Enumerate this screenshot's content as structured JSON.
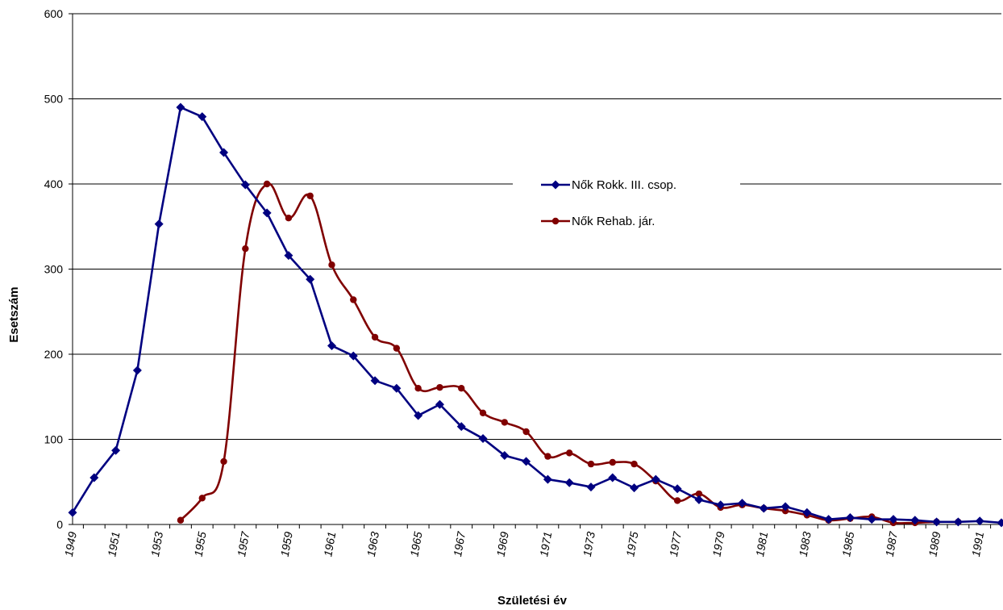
{
  "chart_data": {
    "type": "line",
    "xlabel": "Születési év",
    "ylabel": "Esetszám",
    "ylim": [
      0,
      600
    ],
    "yticks": [
      0,
      100,
      200,
      300,
      400,
      500,
      600
    ],
    "grid": true,
    "legend_position": "center-right",
    "x_tick_labels": [
      "1949",
      "1951",
      "1953",
      "1955",
      "1957",
      "1959",
      "1961",
      "1963",
      "1965",
      "1967",
      "1969",
      "1971",
      "1973",
      "1975",
      "1977",
      "1979",
      "1981",
      "1983",
      "1985",
      "1987",
      "1989",
      "1991"
    ],
    "x_range": [
      1949,
      1992
    ],
    "series": [
      {
        "name": "Nők Rokk. III. csop.",
        "color": "#000080",
        "marker": "diamond",
        "smooth": false,
        "x": [
          1949,
          1950,
          1951,
          1952,
          1953,
          1954,
          1955,
          1956,
          1957,
          1958,
          1959,
          1960,
          1961,
          1962,
          1963,
          1964,
          1965,
          1966,
          1967,
          1968,
          1969,
          1970,
          1971,
          1972,
          1973,
          1974,
          1975,
          1976,
          1977,
          1978,
          1979,
          1980,
          1981,
          1982,
          1983,
          1984,
          1985,
          1986,
          1987,
          1988,
          1989,
          1990,
          1991,
          1992
        ],
        "y": [
          14,
          55,
          87,
          181,
          353,
          490,
          479,
          437,
          399,
          366,
          316,
          288,
          210,
          198,
          169,
          160,
          128,
          141,
          115,
          101,
          81,
          74,
          53,
          49,
          44,
          55,
          43,
          53,
          42,
          29,
          23,
          25,
          19,
          21,
          14,
          6,
          8,
          6,
          6,
          5,
          3,
          3,
          4,
          2
        ]
      },
      {
        "name": "Nők Rehab. jár.",
        "color": "#800000",
        "marker": "circle",
        "smooth": true,
        "x": [
          1954,
          1955,
          1956,
          1957,
          1958,
          1959,
          1960,
          1961,
          1962,
          1963,
          1964,
          1965,
          1966,
          1967,
          1968,
          1969,
          1970,
          1971,
          1972,
          1973,
          1974,
          1975,
          1976,
          1977,
          1978,
          1979,
          1980,
          1981,
          1982,
          1983,
          1984,
          1985,
          1986,
          1987,
          1988,
          1989,
          1990
        ],
        "y": [
          5,
          31,
          74,
          324,
          400,
          360,
          386,
          305,
          264,
          220,
          207,
          160,
          161,
          160,
          131,
          120,
          109,
          80,
          84,
          71,
          73,
          71,
          51,
          28,
          36,
          20,
          23,
          19,
          16,
          11,
          5,
          7,
          9,
          2,
          2,
          3,
          3
        ]
      }
    ]
  }
}
